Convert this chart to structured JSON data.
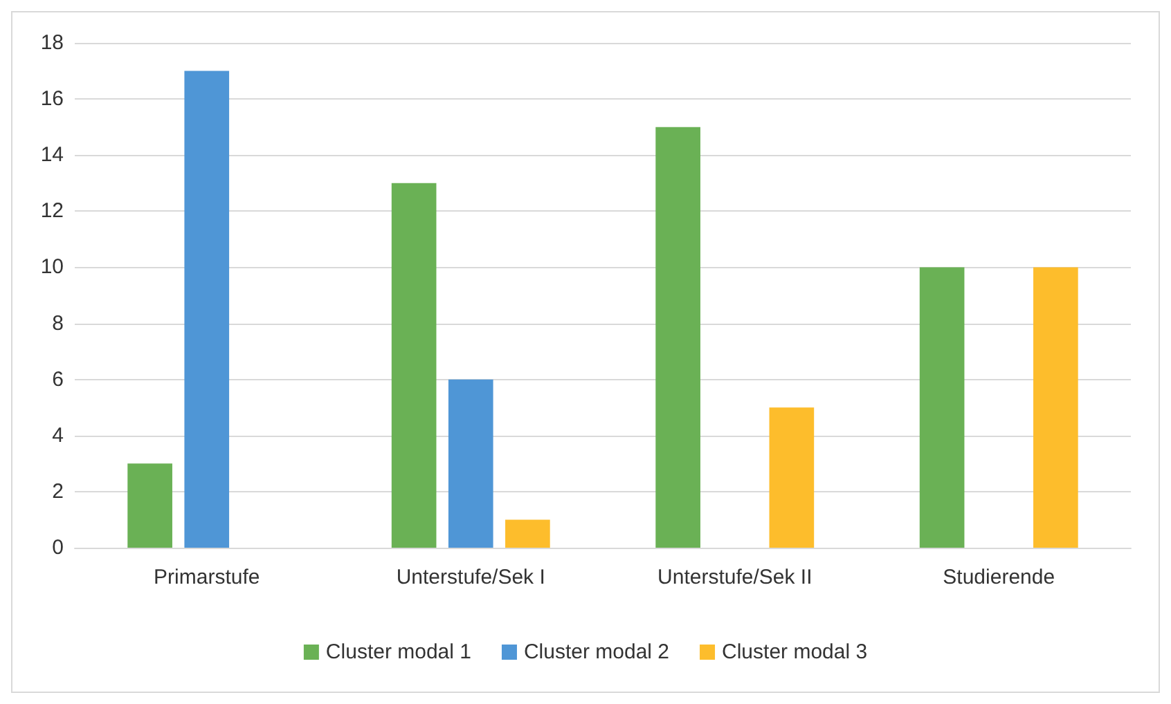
{
  "chart_data": {
    "type": "bar",
    "categories": [
      "Primarstufe",
      "Unterstufe/Sek I",
      "Unterstufe/Sek II",
      "Studierende"
    ],
    "series": [
      {
        "name": "Cluster modal 1",
        "color": "#6ab155",
        "values": [
          3,
          13,
          15,
          10
        ]
      },
      {
        "name": "Cluster modal 2",
        "color": "#4f96d6",
        "values": [
          17,
          6,
          0,
          0
        ]
      },
      {
        "name": "Cluster modal 3",
        "color": "#fdbd2c",
        "values": [
          0,
          1,
          5,
          10
        ]
      }
    ],
    "ylim": [
      0,
      18
    ],
    "yticks": [
      0,
      2,
      4,
      6,
      8,
      10,
      12,
      14,
      16,
      18
    ],
    "grid": "y",
    "legend": "bottom"
  }
}
